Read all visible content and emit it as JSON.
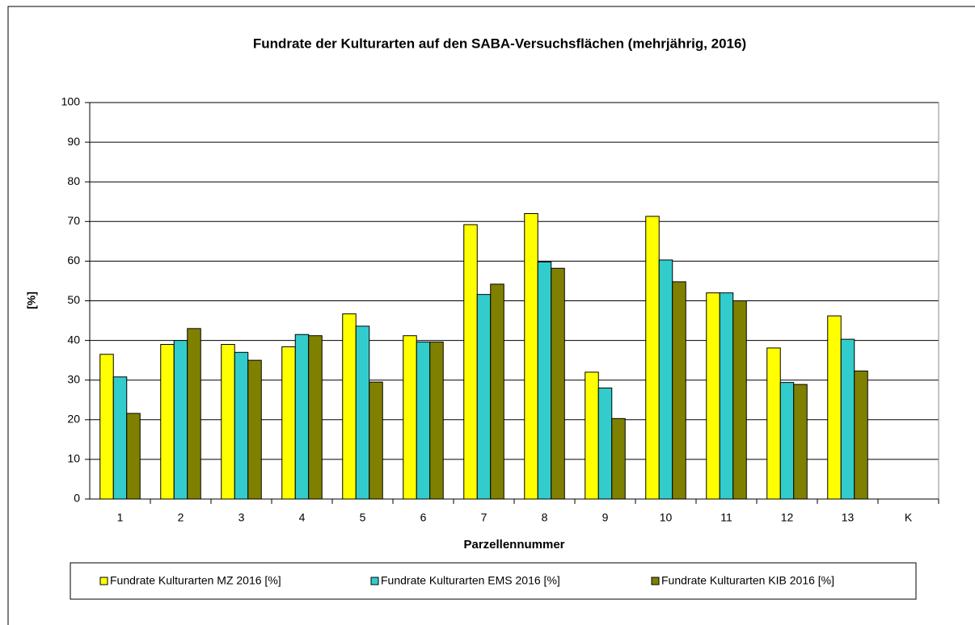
{
  "chart_data": {
    "type": "bar",
    "title": "Fundrate der Kulturarten auf den SABA-Versuchsflächen (mehrjährig, 2016)",
    "x_label": "Parzellennummer",
    "y_label": "[%]",
    "categories": [
      "1",
      "2",
      "3",
      "4",
      "5",
      "6",
      "7",
      "8",
      "9",
      "10",
      "11",
      "12",
      "13",
      "K"
    ],
    "series": [
      {
        "name": "Fundrate Kulturarten MZ 2016 [%]",
        "color": "#ffff00",
        "values": [
          36.5,
          39,
          39,
          38.4,
          46.7,
          41.2,
          69.2,
          72,
          32,
          71.3,
          52,
          38.1,
          46.2,
          null
        ]
      },
      {
        "name": "Fundrate Kulturarten EMS 2016 [%]",
        "color": "#33cccc",
        "values": [
          30.8,
          40,
          37,
          41.5,
          43.6,
          39.6,
          51.6,
          59.8,
          28,
          60.3,
          52,
          29.4,
          40.3,
          null
        ]
      },
      {
        "name": "Fundrate Kulturarten KIB 2016 [%]",
        "color": "#808000",
        "values": [
          21.6,
          43,
          35,
          41.2,
          29.5,
          39.6,
          54.2,
          58.2,
          20.3,
          54.8,
          50,
          28.9,
          32.3,
          null
        ]
      }
    ],
    "ylim": [
      0,
      100
    ],
    "yticks": [
      0,
      10,
      20,
      30,
      40,
      50,
      60,
      70,
      80,
      90,
      100
    ],
    "grid": true,
    "legend": "bottom"
  }
}
